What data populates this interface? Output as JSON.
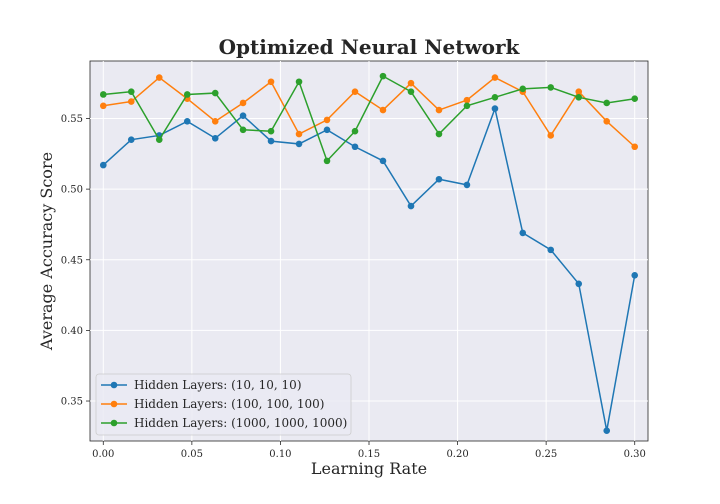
{
  "chart_data": {
    "type": "line",
    "title": "Optimized Neural Network",
    "xlabel": "Learning Rate",
    "ylabel": "Average Accuracy Score",
    "xlim": [
      -0.0075,
      0.3075
    ],
    "ylim": [
      0.3217,
      0.5907
    ],
    "x_ticks": [
      0.0,
      0.05,
      0.1,
      0.15,
      0.2,
      0.25,
      0.3
    ],
    "x_tick_labels": [
      "0.00",
      "0.05",
      "0.10",
      "0.15",
      "0.20",
      "0.25",
      "0.30"
    ],
    "y_ticks": [
      0.35,
      0.4,
      0.45,
      0.5,
      0.55
    ],
    "y_tick_labels": [
      "0.35",
      "0.40",
      "0.45",
      "0.50",
      "0.55"
    ],
    "grid": true,
    "legend_position": "lower-left",
    "background_color": "#eaeaf2",
    "x": [
      0.0,
      0.0158,
      0.0316,
      0.0474,
      0.0632,
      0.0789,
      0.0947,
      0.1105,
      0.1263,
      0.1421,
      0.1579,
      0.1737,
      0.1895,
      0.2053,
      0.2211,
      0.2368,
      0.2526,
      0.2684,
      0.2842,
      0.3
    ],
    "series": [
      {
        "name": "Hidden Layers: (10, 10, 10)",
        "color": "#1f77b4",
        "values": [
          0.517,
          0.535,
          0.538,
          0.548,
          0.536,
          0.552,
          0.534,
          0.532,
          0.542,
          0.53,
          0.52,
          0.488,
          0.507,
          0.503,
          0.557,
          0.469,
          0.457,
          0.433,
          0.329,
          0.439
        ]
      },
      {
        "name": "Hidden Layers: (100, 100, 100)",
        "color": "#ff7f0e",
        "values": [
          0.559,
          0.562,
          0.579,
          0.564,
          0.548,
          0.561,
          0.576,
          0.539,
          0.549,
          0.569,
          0.556,
          0.575,
          0.556,
          0.563,
          0.579,
          0.569,
          0.538,
          0.569,
          0.548,
          0.53
        ]
      },
      {
        "name": "Hidden Layers: (1000, 1000, 1000)",
        "color": "#2ca02c",
        "values": [
          0.567,
          0.569,
          0.535,
          0.567,
          0.568,
          0.542,
          0.541,
          0.576,
          0.52,
          0.541,
          0.58,
          0.569,
          0.539,
          0.559,
          0.565,
          0.571,
          0.572,
          0.565,
          0.561,
          0.564
        ]
      }
    ]
  }
}
